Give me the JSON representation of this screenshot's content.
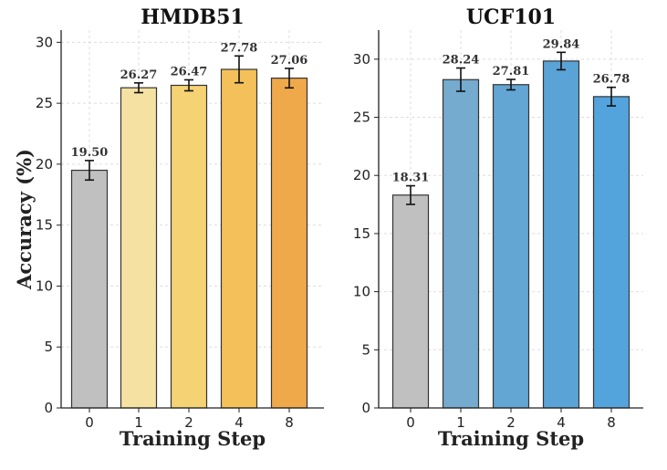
{
  "chart_data": [
    {
      "type": "bar",
      "title": "HMDB51",
      "xlabel": "Training Step",
      "ylabel": "Accuracy (%)",
      "categories": [
        "0",
        "1",
        "2",
        "4",
        "8"
      ],
      "values": [
        19.5,
        26.27,
        26.47,
        27.78,
        27.06
      ],
      "errors": [
        0.8,
        0.4,
        0.45,
        1.1,
        0.8
      ],
      "data_labels": [
        "19.50",
        "26.27",
        "26.47",
        "27.78",
        "27.06"
      ],
      "colors": [
        "#c0c0c0",
        "#f5e1a2",
        "#f5d273",
        "#f3c05a",
        "#f0a94a"
      ],
      "yticks": [
        0,
        5,
        10,
        15,
        20,
        25,
        30
      ],
      "ylim": [
        0,
        31
      ],
      "grid": true
    },
    {
      "type": "bar",
      "title": "UCF101",
      "xlabel": "Training Step",
      "ylabel": "",
      "categories": [
        "0",
        "1",
        "2",
        "4",
        "8"
      ],
      "values": [
        18.31,
        28.24,
        27.81,
        29.84,
        26.78
      ],
      "errors": [
        0.8,
        1.0,
        0.45,
        0.75,
        0.8
      ],
      "data_labels": [
        "18.31",
        "28.24",
        "27.81",
        "29.84",
        "26.78"
      ],
      "colors": [
        "#c0c0c0",
        "#74abcf",
        "#63a5d3",
        "#5aa3d6",
        "#53a3dd"
      ],
      "yticks": [
        0,
        5,
        10,
        15,
        20,
        25,
        30
      ],
      "ylim": [
        0,
        32.5
      ],
      "grid": true
    }
  ]
}
